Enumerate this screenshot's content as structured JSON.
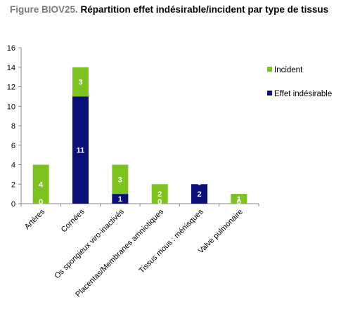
{
  "title_prefix": "Figure BIOV25.",
  "title_main": "Répartition effet indésirable/incident par type de tissus",
  "colors": {
    "incident": "#7dc31e",
    "effet": "#0a0f7a",
    "axis": "#888888",
    "grid": "#e6e6e6"
  },
  "chart_data": {
    "type": "bar",
    "stacked": true,
    "title": "Figure BIOV25. Répartition effet indésirable/incident par type de tissus",
    "xlabel": "",
    "ylabel": "",
    "ylim": [
      0,
      16
    ],
    "yticks": [
      0,
      2,
      4,
      6,
      8,
      10,
      12,
      14,
      16
    ],
    "grid": false,
    "legend": "right",
    "categories": [
      "Artères",
      "Cornées",
      "Os spongieux viro-inactivés",
      "Placentas/Membranes amniotiques",
      "Tissus mous : ménisques",
      "Valve pulmonaire"
    ],
    "series": [
      {
        "name": "Effet indésirable",
        "color": "#0a0f7a",
        "values": [
          0,
          11,
          1,
          0,
          2,
          0
        ]
      },
      {
        "name": "Incident",
        "color": "#7dc31e",
        "values": [
          4,
          3,
          3,
          2,
          0,
          1
        ]
      }
    ]
  }
}
